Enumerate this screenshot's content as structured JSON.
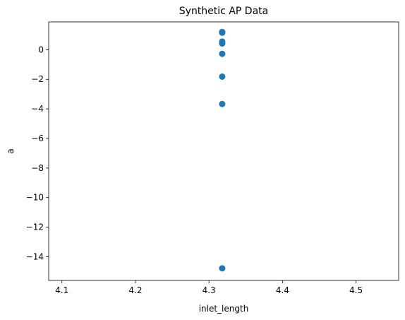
{
  "chart_data": {
    "type": "scatter",
    "title": "Synthetic AP Data",
    "xlabel": "inlet_length",
    "ylabel": "a",
    "xlim": [
      4.082,
      4.558
    ],
    "ylim": [
      -15.6,
      1.88
    ],
    "xticks": [
      {
        "value": 4.1,
        "label": "4.1"
      },
      {
        "value": 4.2,
        "label": "4.2"
      },
      {
        "value": 4.3,
        "label": "4.3"
      },
      {
        "value": 4.4,
        "label": "4.4"
      },
      {
        "value": 4.5,
        "label": "4.5"
      }
    ],
    "yticks": [
      {
        "value": 0,
        "label": "0"
      },
      {
        "value": -2,
        "label": "−2"
      },
      {
        "value": -4,
        "label": "−4"
      },
      {
        "value": -6,
        "label": "−6"
      },
      {
        "value": -8,
        "label": "−8"
      },
      {
        "value": -10,
        "label": "−10"
      },
      {
        "value": -12,
        "label": "−12"
      },
      {
        "value": -14,
        "label": "−14"
      }
    ],
    "grid": false,
    "series": [
      {
        "color": "#1f77b4",
        "points": [
          {
            "x": 4.318,
            "y": 1.2
          },
          {
            "x": 4.318,
            "y": 1.15
          },
          {
            "x": 4.318,
            "y": 0.55
          },
          {
            "x": 4.318,
            "y": 0.42
          },
          {
            "x": 4.318,
            "y": -0.28
          },
          {
            "x": 4.318,
            "y": -1.82
          },
          {
            "x": 4.318,
            "y": -3.67
          },
          {
            "x": 4.318,
            "y": -14.78
          }
        ]
      }
    ]
  }
}
